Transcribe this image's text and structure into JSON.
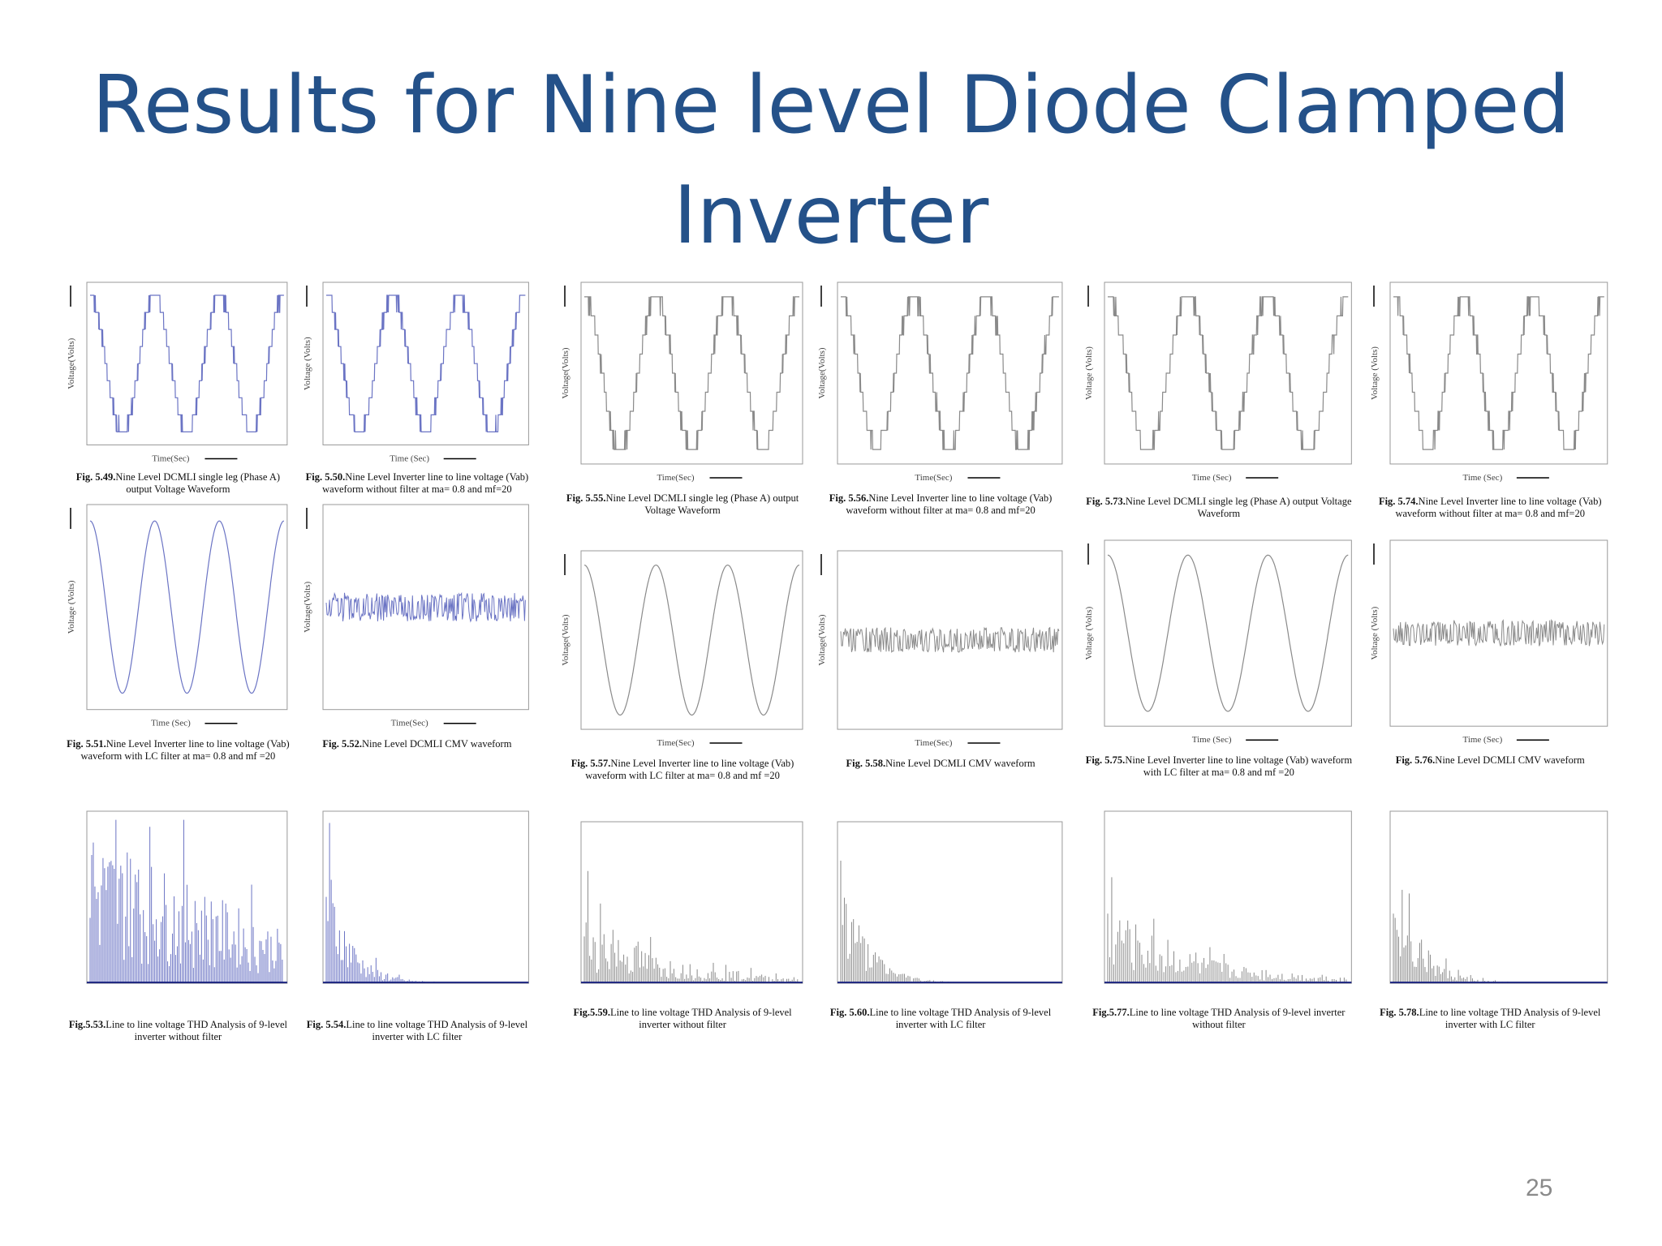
{
  "title": "Results for Nine level Diode Clamped Inverter",
  "page_number": "25",
  "figures": [
    {
      "type": "stepped",
      "label": "Fig. 5.49.",
      "caption": "Nine Level DCMLI single leg (Phase A) output Voltage Waveform",
      "ylabel": "Voltage(Volts)",
      "xlabel": "Time(Sec)"
    },
    {
      "type": "stepped",
      "label": "Fig. 5.50.",
      "caption": "Nine Level Inverter line to line voltage (Vab) waveform without filter at ma= 0.8 and mf=20",
      "ylabel": "Voltage (Volts)",
      "xlabel": "Time (Sec)"
    },
    {
      "type": "sine",
      "label": "Fig. 5.51.",
      "caption": "Nine Level Inverter line to line voltage (Vab) waveform with LC filter at ma= 0.8 and mf =20",
      "ylabel": "Voltage (Volts)",
      "xlabel": "Time (Sec)"
    },
    {
      "type": "cmv",
      "label": "Fig. 5.52.",
      "caption": "Nine Level DCMLI CMV waveform",
      "ylabel": "Voltage(Volts)",
      "xlabel": "Time(Sec)"
    },
    {
      "type": "fft",
      "label": "Fig.5.53.",
      "caption": "Line to line voltage THD Analysis of 9-level inverter without filter"
    },
    {
      "type": "fft-filtered",
      "label": "Fig. 5.54.",
      "caption": "Line to line voltage THD Analysis of 9-level inverter with LC filter"
    },
    {
      "type": "stepped",
      "label": "Fig. 5.55.",
      "caption": "Nine Level DCMLI single leg (Phase A) output Voltage Waveform",
      "ylabel": "Voltage(Volts)",
      "xlabel": "Time(Sec)"
    },
    {
      "type": "stepped",
      "label": "Fig. 5.56.",
      "caption": "Nine Level Inverter line to line voltage (Vab) waveform without filter at ma= 0.8 and mf=20",
      "ylabel": "Voltage(Volts)",
      "xlabel": "Time(Sec)"
    },
    {
      "type": "sine",
      "label": "Fig. 5.57.",
      "caption": "Nine Level Inverter line to line voltage (Vab) waveform with LC filter at ma= 0.8 and mf =20",
      "ylabel": "Voltage(Volts)",
      "xlabel": "Time(Sec)"
    },
    {
      "type": "cmv",
      "label": "Fig. 5.58.",
      "caption": "Nine Level DCMLI CMV waveform",
      "ylabel": "Voltage(Volts)",
      "xlabel": "Time(Sec)"
    },
    {
      "type": "fft",
      "label": "Fig.5.59.",
      "caption": "Line to line voltage THD Analysis of 9-level inverter without filter"
    },
    {
      "type": "fft-filtered",
      "label": "Fig. 5.60.",
      "caption": "Line to line voltage THD Analysis of 9-level inverter with LC filter"
    },
    {
      "type": "stepped",
      "label": "Fig. 5.73.",
      "caption": "Nine Level DCMLI single leg (Phase A) output Voltage Waveform",
      "ylabel": "Voltage (Volts)",
      "xlabel": "Time (Sec)"
    },
    {
      "type": "stepped",
      "label": "Fig. 5.74.",
      "caption": "Nine Level Inverter line to line voltage (Vab) waveform without filter at ma= 0.8 and mf=20",
      "ylabel": "Voltage (Volts)",
      "xlabel": "Time (Sec)"
    },
    {
      "type": "sine",
      "label": "Fig. 5.75.",
      "caption": "Nine Level Inverter line to line voltage (Vab) waveform with LC filter at ma= 0.8 and mf =20",
      "ylabel": "Voltage (Volts)",
      "xlabel": "Time (Sec)"
    },
    {
      "type": "cmv",
      "label": "Fig. 5.76.",
      "caption": "Nine Level DCMLI CMV waveform",
      "ylabel": "Voltage (Volts)",
      "xlabel": "Time (Sec)"
    },
    {
      "type": "fft",
      "label": "Fig.5.77.",
      "caption": "Line to line voltage THD Analysis of 9-level inverter without filter"
    },
    {
      "type": "fft-filtered",
      "label": "Fig. 5.78.",
      "caption": "Line to line voltage THD Analysis of 9-level inverter with LC filter"
    }
  ]
}
